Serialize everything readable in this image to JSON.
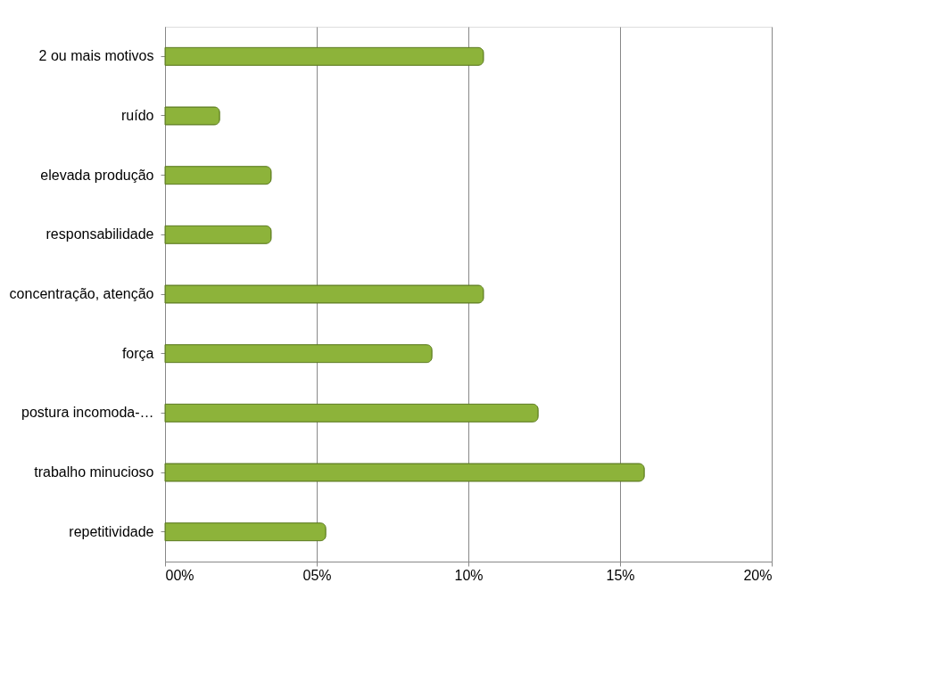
{
  "chart_data": {
    "type": "bar",
    "orientation": "horizontal",
    "categories": [
      "2 ou mais motivos",
      "ruído",
      "elevada produção",
      "responsabilidade",
      "concentração, atenção",
      "força",
      "postura incomoda-…",
      "trabalho minucioso",
      "repetitividade"
    ],
    "values": [
      10.5,
      1.8,
      3.5,
      3.5,
      10.5,
      8.8,
      12.3,
      15.8,
      5.3
    ],
    "color": "#8db33a",
    "xlim": [
      0,
      20
    ],
    "xticks": [
      {
        "value": 0,
        "label": "00%"
      },
      {
        "value": 5,
        "label": "05%"
      },
      {
        "value": 10,
        "label": "10%"
      },
      {
        "value": 15,
        "label": "15%"
      },
      {
        "value": 20,
        "label": "20%"
      }
    ],
    "grid": "x"
  }
}
